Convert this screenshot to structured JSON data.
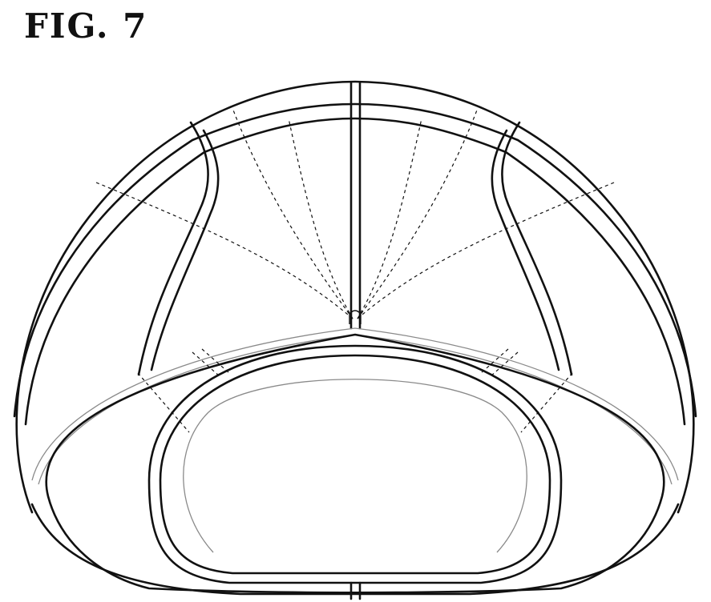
{
  "figure": {
    "label": "FIG. 7"
  },
  "colors": {
    "line": "#111111",
    "hidden_line": "#111111",
    "light_line": "#8a8a8a",
    "background": "#ffffff"
  }
}
